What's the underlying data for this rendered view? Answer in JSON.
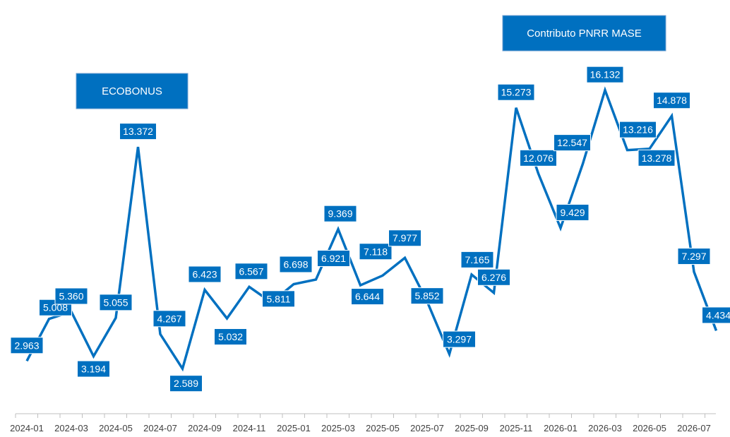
{
  "chart_data": {
    "type": "line",
    "title": "",
    "xlabel": "",
    "ylabel": "",
    "x": [
      "2024-01",
      "2024-02",
      "2024-03",
      "2024-04",
      "2024-05",
      "2024-06",
      "2024-07",
      "2024-08",
      "2024-09",
      "2024-10",
      "2024-11",
      "2024-12",
      "2025-01",
      "2025-02",
      "2025-03",
      "2025-04",
      "2025-05",
      "2025-06",
      "2025-07",
      "2025-08",
      "2025-09",
      "2025-10",
      "2025-11",
      "2025-12",
      "2026-01",
      "2026-02",
      "2026-03",
      "2026-04",
      "2026-05",
      "2026-06",
      "2026-07",
      "2026-08"
    ],
    "x_tick_labels": [
      "2024-01",
      "2024-03",
      "2024-05",
      "2024-07",
      "2024-09",
      "2024-11",
      "2025-01",
      "2025-03",
      "2025-05",
      "2025-07",
      "2025-09",
      "2025-11",
      "2026-01",
      "2026-03",
      "2026-05",
      "2026-07"
    ],
    "series": [
      {
        "values": [
          2963,
          5008,
          5360,
          3194,
          5055,
          13372,
          4267,
          2589,
          6423,
          5032,
          6567,
          5811,
          6698,
          6921,
          9369,
          6644,
          7118,
          7977,
          5852,
          3297,
          7165,
          6276,
          15273,
          12076,
          9429,
          12547,
          16132,
          13216,
          13278,
          14878,
          7297,
          4434
        ],
        "data_labels": [
          "2.963",
          "5.008",
          "5.360",
          "3.194",
          "5.055",
          "13.372",
          "4.267",
          "2.589",
          "6.423",
          "5.032",
          "6.567",
          "5.811",
          "6.698",
          "6.921",
          "9.369",
          "6.644",
          "7.118",
          "7.977",
          "5.852",
          "3.297",
          "7.165",
          "6.276",
          "15.273",
          "12.076",
          "9.429",
          "12.547",
          "16.132",
          "13.216",
          "13.278",
          "14.878",
          "7.297",
          "4.434"
        ],
        "color": "#0070c0"
      }
    ],
    "annotations": [
      {
        "text": "ECOBONUS",
        "near": "2024-06"
      },
      {
        "text": "Contributo PNRR MASE",
        "near": "2026-02"
      }
    ],
    "ylim": [
      0,
      18000
    ],
    "grid": false,
    "legend": "none",
    "label_color": "#0070c0",
    "axis_color": "#bfbfbf"
  }
}
